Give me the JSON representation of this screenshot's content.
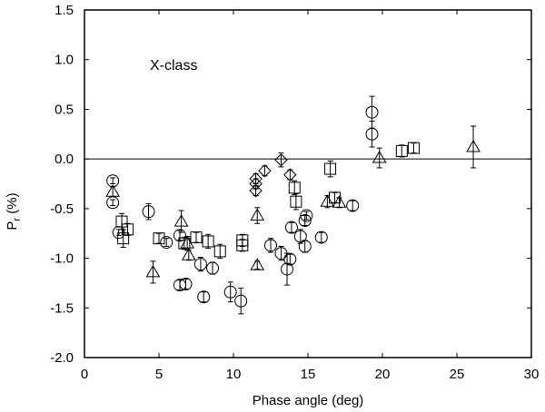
{
  "chart_data": {
    "type": "scatter",
    "title": "",
    "xlabel": "Phase angle (deg)",
    "ylabel_main": "P",
    "ylabel_sub": "r",
    "ylabel_unit": " (%)",
    "xlim": [
      0,
      30
    ],
    "ylim": [
      -2.0,
      1.5
    ],
    "xticks": [
      0,
      5,
      10,
      15,
      20,
      25,
      30
    ],
    "yticks": [
      -2.0,
      -1.5,
      -1.0,
      -0.5,
      0.0,
      0.5,
      1.0,
      1.5
    ],
    "xtick_labels": [
      "0",
      "5",
      "10",
      "15",
      "20",
      "25",
      "30"
    ],
    "ytick_labels": [
      "-2.0",
      "-1.5",
      "-1.0",
      "-0.5",
      "0.0",
      "0.5",
      "1.0",
      "1.5"
    ],
    "annotation": "X-class",
    "zero_line": true,
    "grid": false,
    "series": [
      {
        "marker": "circle",
        "points": [
          {
            "x": 1.9,
            "y": -0.22,
            "err": 0.03
          },
          {
            "x": 1.9,
            "y": -0.44,
            "err": 0.03
          },
          {
            "x": 2.3,
            "y": -0.74,
            "err": 0.03
          },
          {
            "x": 4.3,
            "y": -0.53,
            "err": 0.08
          },
          {
            "x": 5.5,
            "y": -0.84,
            "err": 0.04
          },
          {
            "x": 6.4,
            "y": -1.27,
            "err": 0.05
          },
          {
            "x": 6.4,
            "y": -0.77,
            "err": 0.05
          },
          {
            "x": 6.8,
            "y": -1.26,
            "err": 0.05
          },
          {
            "x": 7.8,
            "y": -1.06,
            "err": 0.07
          },
          {
            "x": 8.0,
            "y": -1.39,
            "err": 0.05
          },
          {
            "x": 8.6,
            "y": -1.1,
            "err": 0.06
          },
          {
            "x": 9.8,
            "y": -1.34,
            "err": 0.1
          },
          {
            "x": 10.5,
            "y": -1.43,
            "err": 0.13
          },
          {
            "x": 12.5,
            "y": -0.87,
            "err": 0.07
          },
          {
            "x": 13.2,
            "y": -0.95,
            "err": 0.07
          },
          {
            "x": 13.6,
            "y": -1.11,
            "err": 0.16
          },
          {
            "x": 13.8,
            "y": -1.01,
            "err": 0.05
          },
          {
            "x": 13.9,
            "y": -0.69,
            "err": 0.05
          },
          {
            "x": 14.5,
            "y": -0.78,
            "err": 0.07
          },
          {
            "x": 14.8,
            "y": -0.88,
            "err": 0.06
          },
          {
            "x": 14.8,
            "y": -0.62,
            "err": 0.05
          },
          {
            "x": 14.9,
            "y": -0.57,
            "err": 0.04
          },
          {
            "x": 15.9,
            "y": -0.79,
            "err": 0.05
          },
          {
            "x": 18.0,
            "y": -0.47,
            "err": 0.05
          },
          {
            "x": 19.3,
            "y": 0.47,
            "err": 0.16
          },
          {
            "x": 19.3,
            "y": 0.25,
            "err": 0.13
          }
        ]
      },
      {
        "marker": "triangle",
        "points": [
          {
            "x": 1.9,
            "y": -0.33,
            "err": 0.05
          },
          {
            "x": 4.6,
            "y": -1.14,
            "err": 0.11
          },
          {
            "x": 6.5,
            "y": -0.63,
            "err": 0.11
          },
          {
            "x": 6.9,
            "y": -0.85,
            "err": 0.07
          },
          {
            "x": 7.0,
            "y": -0.97,
            "err": 0.05
          },
          {
            "x": 11.6,
            "y": -0.57,
            "err": 0.08
          },
          {
            "x": 11.6,
            "y": -1.07,
            "err": 0.04
          },
          {
            "x": 16.3,
            "y": -0.43,
            "err": 0.06
          },
          {
            "x": 17.1,
            "y": -0.44,
            "err": 0.05
          },
          {
            "x": 19.8,
            "y": 0.01,
            "err": 0.1
          },
          {
            "x": 26.1,
            "y": 0.12,
            "err": 0.21
          }
        ]
      },
      {
        "marker": "square",
        "points": [
          {
            "x": 2.5,
            "y": -0.63,
            "err": 0.08
          },
          {
            "x": 2.6,
            "y": -0.8,
            "err": 0.09
          },
          {
            "x": 2.9,
            "y": -0.71,
            "err": 0.06
          },
          {
            "x": 5.0,
            "y": -0.8,
            "err": 0.05
          },
          {
            "x": 6.7,
            "y": -0.85,
            "err": 0.06
          },
          {
            "x": 7.5,
            "y": -0.79,
            "err": 0.05
          },
          {
            "x": 8.3,
            "y": -0.83,
            "err": 0.07
          },
          {
            "x": 9.1,
            "y": -0.93,
            "err": 0.07
          },
          {
            "x": 10.6,
            "y": -0.82,
            "err": 0.06
          },
          {
            "x": 10.6,
            "y": -0.87,
            "err": 0.06
          },
          {
            "x": 14.1,
            "y": -0.29,
            "err": 0.07
          },
          {
            "x": 14.2,
            "y": -0.43,
            "err": 0.08
          },
          {
            "x": 16.5,
            "y": -0.1,
            "err": 0.08
          },
          {
            "x": 16.8,
            "y": -0.39,
            "err": 0.05
          },
          {
            "x": 21.3,
            "y": 0.08,
            "err": 0.06
          },
          {
            "x": 22.1,
            "y": 0.11,
            "err": 0.05
          }
        ]
      },
      {
        "marker": "diamond",
        "points": [
          {
            "x": 11.5,
            "y": -0.2,
            "err": 0.05
          },
          {
            "x": 11.5,
            "y": -0.25,
            "err": 0.05
          },
          {
            "x": 11.5,
            "y": -0.32,
            "err": 0.05
          },
          {
            "x": 12.1,
            "y": -0.12,
            "err": 0.05
          },
          {
            "x": 13.2,
            "y": -0.01,
            "err": 0.07
          },
          {
            "x": 13.8,
            "y": -0.16,
            "err": 0.05
          }
        ]
      }
    ]
  }
}
